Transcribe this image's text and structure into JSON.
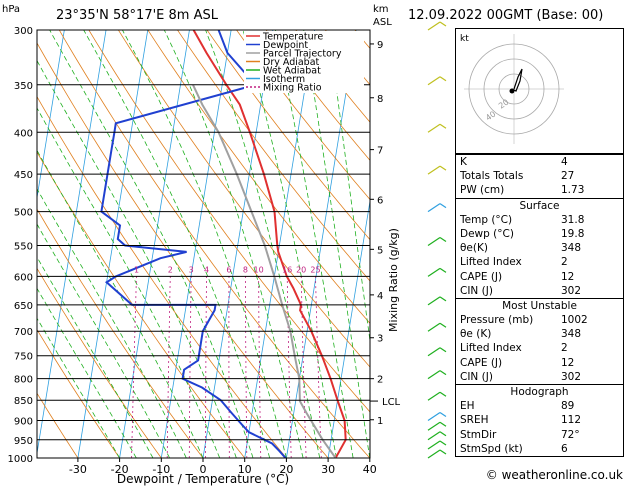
{
  "header": {
    "location": "23°35'N 58°17'E 8m ASL",
    "hpa_label": "hPa",
    "km_label": "km",
    "asl_label": "ASL",
    "datetime": "12.09.2022 00GMT (Base: 00)"
  },
  "legend": [
    {
      "label": "Temperature",
      "color": "#e03030",
      "dash": false
    },
    {
      "label": "Dewpoint",
      "color": "#2040d0",
      "dash": false
    },
    {
      "label": "Parcel Trajectory",
      "color": "#a0a0a0",
      "dash": false
    },
    {
      "label": "Dry Adiabat",
      "color": "#e08020",
      "dash": false
    },
    {
      "label": "Wet Adiabat",
      "color": "#20b020",
      "dash": false
    },
    {
      "label": "Isotherm",
      "color": "#30a0e0",
      "dash": false
    },
    {
      "label": "Mixing Ratio",
      "color": "#c02080",
      "dash": true
    }
  ],
  "chart_data": {
    "type": "line",
    "xlabel": "Dewpoint / Temperature (°C)",
    "right_axis_label": "Mixing Ratio (g/kg)",
    "x_ticks": [
      -30,
      -20,
      -10,
      0,
      10,
      20,
      30,
      40
    ],
    "pressure_levels": [
      300,
      350,
      400,
      450,
      500,
      550,
      600,
      650,
      700,
      750,
      800,
      850,
      900,
      950,
      1000
    ],
    "km_ticks": [
      {
        "km": "9",
        "p": 312
      },
      {
        "km": "8",
        "p": 363
      },
      {
        "km": "7",
        "p": 420
      },
      {
        "km": "6",
        "p": 483
      },
      {
        "km": "5",
        "p": 556
      },
      {
        "km": "4",
        "p": 632
      },
      {
        "km": "3",
        "p": 713
      },
      {
        "km": "2",
        "p": 800
      },
      {
        "km": "1",
        "p": 898
      }
    ],
    "lcl": {
      "label": "LCL",
      "p": 852
    },
    "mixing_ratio_labels": [
      "1",
      "2",
      "3",
      "4",
      "6",
      "8",
      "10",
      "16",
      "20",
      "25"
    ],
    "mixing_ratio_values": [
      1,
      2,
      3,
      4,
      6,
      8,
      10,
      16,
      20,
      25
    ],
    "xlim": [
      -35,
      40
    ],
    "plim": [
      300,
      1000
    ],
    "series": [
      {
        "name": "Temperature",
        "color": "#e03030",
        "points": [
          [
            31.8,
            1000
          ],
          [
            33.5,
            950
          ],
          [
            32.5,
            900
          ],
          [
            30,
            850
          ],
          [
            27.5,
            800
          ],
          [
            24.5,
            750
          ],
          [
            21,
            700
          ],
          [
            17.5,
            660
          ],
          [
            17.5,
            650
          ],
          [
            15,
            620
          ],
          [
            13,
            600
          ],
          [
            10,
            560
          ],
          [
            9.5,
            550
          ],
          [
            7.5,
            500
          ],
          [
            3.5,
            450
          ],
          [
            -1.5,
            400
          ],
          [
            -5,
            370
          ],
          [
            -9,
            350
          ],
          [
            -15,
            320
          ],
          [
            -19,
            300
          ]
        ]
      },
      {
        "name": "Dewpoint",
        "color": "#2040d0",
        "points": [
          [
            19.8,
            1000
          ],
          [
            18,
            980
          ],
          [
            16,
            960
          ],
          [
            10,
            930
          ],
          [
            8,
            910
          ],
          [
            5,
            880
          ],
          [
            2,
            850
          ],
          [
            -3,
            820
          ],
          [
            -8,
            800
          ],
          [
            -8,
            780
          ],
          [
            -5,
            760
          ],
          [
            -5,
            700
          ],
          [
            -3,
            660
          ],
          [
            -3,
            650
          ],
          [
            -23,
            650
          ],
          [
            -30,
            610
          ],
          [
            -28,
            600
          ],
          [
            -18,
            570
          ],
          [
            -12,
            560
          ],
          [
            -27,
            550
          ],
          [
            -29,
            540
          ],
          [
            -29,
            520
          ],
          [
            -34,
            500
          ],
          [
            -34,
            450
          ],
          [
            -34,
            420
          ],
          [
            -34,
            400
          ],
          [
            -34,
            390
          ],
          [
            -2,
            350
          ],
          [
            -10,
            320
          ],
          [
            -13,
            300
          ]
        ]
      },
      {
        "name": "Parcel Trajectory",
        "color": "#a0a0a0",
        "points": [
          [
            31.8,
            1000
          ],
          [
            28,
            950
          ],
          [
            23,
            880
          ],
          [
            21,
            852
          ],
          [
            20,
            800
          ],
          [
            18,
            750
          ],
          [
            16,
            700
          ],
          [
            13,
            650
          ],
          [
            10,
            600
          ],
          [
            6.5,
            550
          ],
          [
            2,
            500
          ],
          [
            -3,
            450
          ],
          [
            -9,
            400
          ],
          [
            -14,
            370
          ],
          [
            -17,
            350
          ]
        ]
      }
    ]
  },
  "hodograph": {
    "label": "kt",
    "rings": [
      "40",
      "20"
    ]
  },
  "indices": [
    {
      "label": "K",
      "value": "4"
    },
    {
      "label": "Totals Totals",
      "value": "27"
    },
    {
      "label": "PW (cm)",
      "value": "1.73"
    }
  ],
  "surface": {
    "title": "Surface",
    "rows": [
      {
        "label": "Temp (°C)",
        "value": "31.8"
      },
      {
        "label": "Dewp (°C)",
        "value": "19.8"
      },
      {
        "label": "θe(K)",
        "value": "348"
      },
      {
        "label": "Lifted Index",
        "value": "2"
      },
      {
        "label": "CAPE (J)",
        "value": "12"
      },
      {
        "label": "CIN (J)",
        "value": "302"
      }
    ]
  },
  "most_unstable": {
    "title": "Most Unstable",
    "rows": [
      {
        "label": "Pressure (mb)",
        "value": "1002"
      },
      {
        "label": "θe (K)",
        "value": "348"
      },
      {
        "label": "Lifted Index",
        "value": "2"
      },
      {
        "label": "CAPE (J)",
        "value": "12"
      },
      {
        "label": "CIN (J)",
        "value": "302"
      }
    ]
  },
  "hodograph_table": {
    "title": "Hodograph",
    "rows": [
      {
        "label": "EH",
        "value": "89"
      },
      {
        "label": "SREH",
        "value": "112"
      },
      {
        "label": "StmDir",
        "value": "72°"
      },
      {
        "label": "StmSpd (kt)",
        "value": "6"
      }
    ]
  },
  "copyright": "© weatheronline.co.uk"
}
